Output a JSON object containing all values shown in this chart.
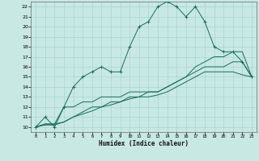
{
  "xlabel": "Humidex (Indice chaleur)",
  "ylabel_ticks": [
    10,
    11,
    12,
    13,
    14,
    15,
    16,
    17,
    18,
    19,
    20,
    21,
    22
  ],
  "xlim": [
    -0.5,
    23.5
  ],
  "ylim": [
    9.5,
    22.5
  ],
  "background_color": "#c8e8e4",
  "grid_color": "#a8d4d0",
  "line_color": "#1a6b5a",
  "series": {
    "main": {
      "x": [
        0,
        1,
        2,
        3,
        4,
        5,
        6,
        7,
        8,
        9,
        10,
        11,
        12,
        13,
        14,
        15,
        16,
        17,
        18,
        19,
        20,
        21,
        22,
        23
      ],
      "y": [
        10,
        11,
        10,
        12,
        14,
        15,
        15.5,
        16,
        15.5,
        15.5,
        18,
        20,
        20.5,
        22,
        22.5,
        22,
        21,
        22,
        20.5,
        18,
        17.5,
        17.5,
        16.5,
        15
      ]
    },
    "line2": {
      "x": [
        0,
        1,
        2,
        3,
        4,
        5,
        6,
        7,
        8,
        9,
        10,
        11,
        12,
        13,
        14,
        15,
        16,
        17,
        18,
        19,
        20,
        21,
        22,
        23
      ],
      "y": [
        10,
        10.3,
        10.3,
        12,
        12,
        12.5,
        12.5,
        13,
        13,
        13,
        13.5,
        13.5,
        13.5,
        13.5,
        14,
        14.5,
        15,
        16,
        16.5,
        17,
        17,
        17.5,
        17.5,
        15
      ]
    },
    "line3": {
      "x": [
        0,
        1,
        2,
        3,
        4,
        5,
        6,
        7,
        8,
        9,
        10,
        11,
        12,
        13,
        14,
        15,
        16,
        17,
        18,
        19,
        20,
        21,
        22,
        23
      ],
      "y": [
        10,
        10.3,
        10.3,
        10.5,
        11,
        11.5,
        12,
        12,
        12.5,
        12.5,
        13,
        13,
        13.5,
        13.5,
        14,
        14.5,
        15,
        15.5,
        16,
        16,
        16,
        16.5,
        16.5,
        15
      ]
    },
    "line4": {
      "x": [
        0,
        1,
        2,
        3,
        4,
        5,
        6,
        7,
        8,
        9,
        10,
        11,
        12,
        13,
        14,
        15,
        16,
        17,
        18,
        19,
        20,
        21,
        22,
        23
      ],
      "y": [
        10,
        10.2,
        10.2,
        10.5,
        11,
        11.3,
        11.6,
        12,
        12.2,
        12.5,
        12.8,
        13,
        13,
        13.2,
        13.5,
        14,
        14.5,
        15,
        15.5,
        15.5,
        15.5,
        15.5,
        15.2,
        15
      ]
    }
  }
}
